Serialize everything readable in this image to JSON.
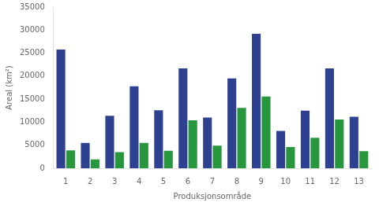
{
  "chart_data": {
    "type": "bar",
    "xlabel": "Produksjonsområde",
    "ylabel": "Areal (km²)",
    "categories": [
      "1",
      "2",
      "3",
      "4",
      "5",
      "6",
      "7",
      "8",
      "9",
      "10",
      "11",
      "12",
      "13"
    ],
    "series": [
      {
        "color": "#2e4090",
        "values": [
          25800,
          5500,
          11400,
          17800,
          12600,
          21700,
          11000,
          19500,
          29200,
          8100,
          12500,
          21700,
          11200
        ]
      },
      {
        "color": "#27963c",
        "values": [
          3900,
          1900,
          3500,
          5500,
          3800,
          10400,
          4900,
          13100,
          15600,
          4600,
          6600,
          10600,
          3700
        ]
      }
    ],
    "ylim": [
      0,
      35000
    ],
    "yticks": [
      0,
      5000,
      10000,
      15000,
      20000,
      25000,
      30000,
      35000
    ],
    "grid": false
  }
}
